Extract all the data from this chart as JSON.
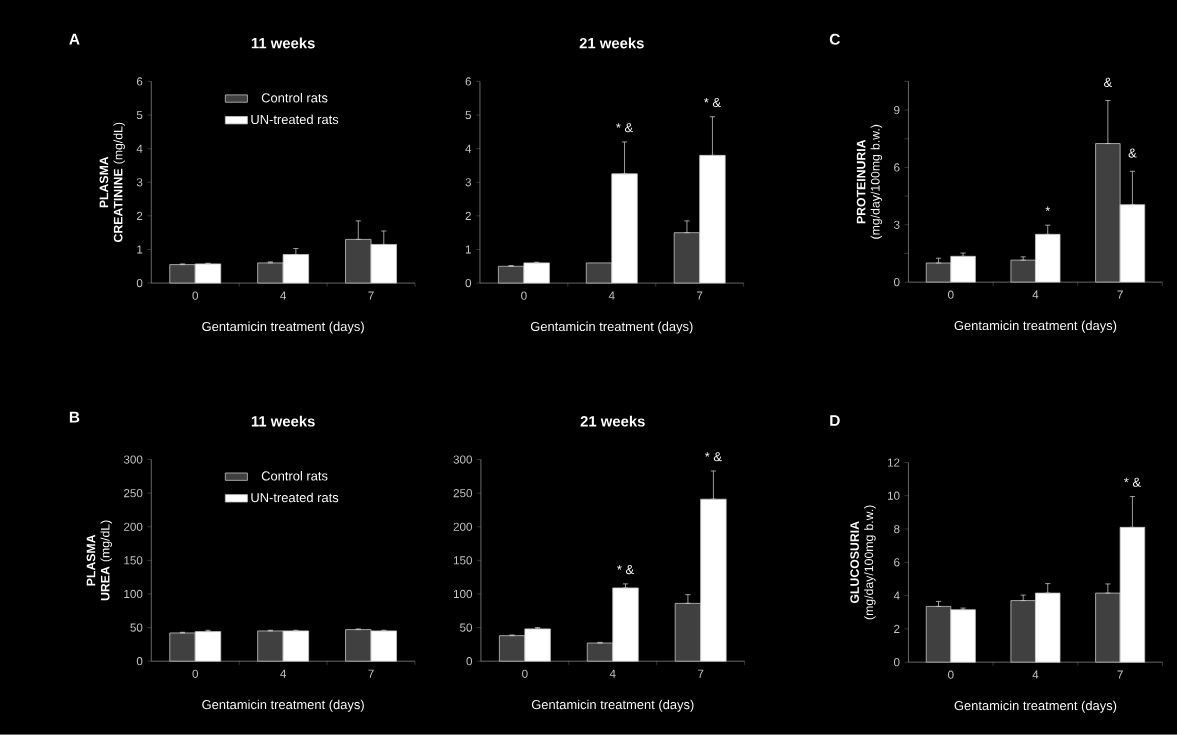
{
  "chart_data": [
    {
      "type": "bar",
      "title": "11 weeks",
      "xlabel": "Gentamicin treatment (days)",
      "ylabel": "**PLASMA CREATININE** (mg/dL)",
      "categories": [
        "0",
        "4",
        "7"
      ],
      "ylim": [
        0,
        6
      ],
      "yticks": [
        0,
        1,
        2,
        3,
        4,
        5,
        6
      ],
      "legend": "top",
      "annotations": [
        "A"
      ],
      "series": [
        {
          "name": "Control rats",
          "color": "#404040",
          "values": [
            0.55,
            0.6,
            1.3
          ],
          "errors": [
            [
              0.55,
              0.57
            ],
            [
              0.6,
              0.63
            ],
            [
              1.3,
              1.85
            ]
          ]
        },
        {
          "name": "UN-treated rats",
          "color": "#ffffff",
          "values": [
            0.57,
            0.85,
            1.15
          ],
          "errors": [
            [
              0.57,
              0.59
            ],
            [
              0.85,
              1.03
            ],
            [
              1.15,
              1.55
            ]
          ]
        }
      ]
    },
    {
      "type": "bar",
      "title": "21 weeks",
      "xlabel": "Gentamicin treatment (days)",
      "categories": [
        "0",
        "4",
        "7"
      ],
      "ylim": [
        0,
        6
      ],
      "yticks": [
        0,
        1,
        2,
        3,
        4,
        5,
        6
      ],
      "annotations": [
        "* &",
        "* &"
      ],
      "series": [
        {
          "color": "#404040",
          "values": [
            0.5,
            0.6,
            1.5
          ],
          "errors": [
            [
              0.5,
              0.52
            ],
            null,
            [
              1.5,
              1.85
            ]
          ]
        },
        {
          "color": "#ffffff",
          "values": [
            0.6,
            3.25,
            3.8
          ],
          "errors": [
            [
              0.6,
              0.62
            ],
            [
              3.25,
              4.2
            ],
            [
              3.8,
              4.95
            ]
          ]
        }
      ]
    },
    {
      "type": "bar",
      "xlabel": "Gentamicin treatment (days)",
      "ylabel": "**PROTEINURIA** (mg/day/100mg b.w.)",
      "categories": [
        "0",
        "4",
        "7"
      ],
      "ylim": [
        0,
        10.5
      ],
      "yticks": [
        0,
        {
          "value": 1.5,
          "label": null
        },
        3,
        {
          "value": 4.5,
          "label": null
        },
        6,
        {
          "value": 7.5,
          "label": null
        },
        9,
        {
          "value": 10.5,
          "label": null
        }
      ],
      "annotations": [
        "C",
        "*",
        "&",
        "&"
      ],
      "series": [
        {
          "color": "#404040",
          "values": [
            1.0,
            1.15,
            7.25
          ],
          "errors": [
            [
              1.0,
              1.25
            ],
            [
              1.15,
              1.32
            ],
            [
              7.25,
              9.5
            ]
          ]
        },
        {
          "color": "#ffffff",
          "values": [
            1.35,
            2.5,
            4.05
          ],
          "errors": [
            [
              1.35,
              1.52
            ],
            [
              2.5,
              2.98
            ],
            [
              4.05,
              5.8
            ]
          ]
        }
      ]
    },
    {
      "type": "bar",
      "title": "11 weeks",
      "xlabel": "Gentamicin treatment (days)",
      "ylabel": "**PLASMA UREA** (mg/dL)",
      "categories": [
        "0",
        "4",
        "7"
      ],
      "ylim": [
        0,
        300
      ],
      "yticks": [
        0,
        50,
        100,
        150,
        200,
        250,
        300
      ],
      "legend": "top",
      "annotations": [
        "B"
      ],
      "series": [
        {
          "name": "Control rats",
          "color": "#404040",
          "values": [
            42,
            45,
            47
          ],
          "errors": [
            [
              42,
              43
            ],
            [
              45,
              46
            ],
            [
              47,
              48
            ]
          ]
        },
        {
          "name": "UN-treated rats",
          "color": "#ffffff",
          "values": [
            44,
            45,
            45
          ],
          "errors": [
            [
              44,
              46
            ],
            [
              45,
              46
            ],
            [
              45,
              46
            ]
          ]
        }
      ]
    },
    {
      "type": "bar",
      "title": "21 weeks",
      "xlabel": "Gentamicin treatment (days)",
      "categories": [
        "0",
        "4",
        "7"
      ],
      "ylim": [
        0,
        300
      ],
      "yticks": [
        0,
        50,
        100,
        150,
        200,
        250,
        300
      ],
      "annotations": [
        "* &",
        "* &"
      ],
      "series": [
        {
          "color": "#404040",
          "values": [
            38,
            27,
            86
          ],
          "errors": [
            [
              38,
              39
            ],
            [
              27,
              28
            ],
            [
              86,
              99
            ]
          ]
        },
        {
          "color": "#ffffff",
          "values": [
            48,
            109,
            241
          ],
          "errors": [
            [
              48,
              50
            ],
            [
              109,
              115
            ],
            [
              241,
              283
            ]
          ]
        }
      ]
    },
    {
      "type": "bar",
      "xlabel": "Gentamicin treatment (days)",
      "ylabel": "**GLUCOSURIA** (mg/day/100mg b.w.)",
      "categories": [
        "0",
        "4",
        "7"
      ],
      "ylim": [
        0,
        12
      ],
      "yticks": [
        0,
        2,
        4,
        6,
        8,
        10,
        12
      ],
      "annotations": [
        "D",
        "* &"
      ],
      "series": [
        {
          "color": "#404040",
          "values": [
            3.35,
            3.7,
            4.15
          ],
          "errors": [
            [
              3.35,
              3.65
            ],
            [
              3.7,
              4.03
            ],
            [
              4.15,
              4.7
            ]
          ]
        },
        {
          "color": "#ffffff",
          "values": [
            3.15,
            4.15,
            8.1
          ],
          "errors": [
            [
              3.15,
              3.25
            ],
            [
              4.15,
              4.72
            ],
            [
              8.1,
              9.95
            ]
          ]
        }
      ]
    }
  ]
}
